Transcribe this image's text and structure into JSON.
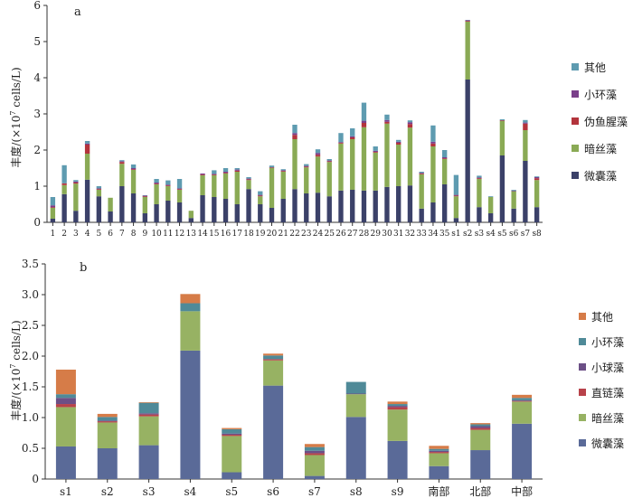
{
  "chart_data": [
    {
      "panel_label": "a",
      "type": "bar",
      "stacked": true,
      "ylabel": "丰度/(×10",
      "ylabel_exp": "7",
      "ylabel_unit": " cells/L)",
      "ylim": [
        0,
        6
      ],
      "yticks": [
        0,
        1,
        2,
        3,
        4,
        5,
        6
      ],
      "grid": false,
      "legend_position": "right",
      "categories": [
        "1",
        "2",
        "3",
        "4",
        "5",
        "6",
        "7",
        "8",
        "9",
        "10",
        "11",
        "12",
        "13",
        "14",
        "15",
        "16",
        "17",
        "18",
        "19",
        "20",
        "21",
        "22",
        "23",
        "24",
        "25",
        "26",
        "27",
        "28",
        "29",
        "30",
        "31",
        "32",
        "33",
        "34",
        "35",
        "s1",
        "s2",
        "s3",
        "s4",
        "s5",
        "s6",
        "s7",
        "s8"
      ],
      "series": [
        {
          "name": "微囊藻",
          "color": "#3b4169",
          "values": [
            0.1,
            0.78,
            0.32,
            1.18,
            0.72,
            0.3,
            1.0,
            0.8,
            0.25,
            0.5,
            0.6,
            0.55,
            0.12,
            0.75,
            0.7,
            0.65,
            0.5,
            0.92,
            0.5,
            0.4,
            0.65,
            0.92,
            0.8,
            0.82,
            0.72,
            0.88,
            0.9,
            0.88,
            0.88,
            0.98,
            1.0,
            1.02,
            0.38,
            0.55,
            1.05,
            0.12,
            3.95,
            0.42,
            0.25,
            1.85,
            0.38,
            1.7,
            0.42
          ]
        },
        {
          "name": "暗丝藻",
          "color": "#8aaa55",
          "values": [
            0.3,
            0.25,
            0.75,
            0.72,
            0.18,
            0.38,
            0.62,
            0.65,
            0.45,
            0.55,
            0.4,
            0.35,
            0.2,
            0.55,
            0.6,
            0.7,
            0.9,
            0.25,
            0.22,
            1.1,
            0.75,
            1.38,
            0.72,
            1.0,
            0.95,
            1.3,
            1.4,
            1.75,
            1.05,
            1.75,
            1.15,
            1.6,
            0.95,
            1.55,
            0.7,
            0.6,
            1.6,
            0.78,
            0.45,
            0.95,
            0.48,
            0.85,
            0.75
          ]
        },
        {
          "name": "伪鱼腥藻",
          "color": "#b3343c",
          "values": [
            0.02,
            0.05,
            0.03,
            0.25,
            0.02,
            0.0,
            0.05,
            0.02,
            0.02,
            0.02,
            0.02,
            0.02,
            0.0,
            0.02,
            0.02,
            0.02,
            0.03,
            0.02,
            0.02,
            0.02,
            0.02,
            0.12,
            0.02,
            0.05,
            0.02,
            0.02,
            0.05,
            0.12,
            0.02,
            0.05,
            0.05,
            0.1,
            0.02,
            0.08,
            0.02,
            0.02,
            0.02,
            0.02,
            0.0,
            0.02,
            0.0,
            0.18,
            0.05
          ]
        },
        {
          "name": "小环藻",
          "color": "#7a3f8a",
          "values": [
            0.05,
            0.0,
            0.03,
            0.03,
            0.02,
            0.0,
            0.02,
            0.03,
            0.02,
            0.03,
            0.02,
            0.02,
            0.0,
            0.03,
            0.02,
            0.03,
            0.03,
            0.02,
            0.02,
            0.0,
            0.02,
            0.05,
            0.02,
            0.05,
            0.02,
            0.02,
            0.03,
            0.06,
            0.03,
            0.05,
            0.03,
            0.05,
            0.02,
            0.05,
            0.03,
            0.02,
            0.02,
            0.02,
            0.0,
            0.0,
            0.02,
            0.03,
            0.03
          ]
        },
        {
          "name": "其他",
          "color": "#5e9bb0",
          "values": [
            0.23,
            0.5,
            0.04,
            0.07,
            0.06,
            0.0,
            0.03,
            0.1,
            0.01,
            0.1,
            0.12,
            0.26,
            0.0,
            0.0,
            0.1,
            0.1,
            0.04,
            0.04,
            0.1,
            0.05,
            0.03,
            0.23,
            0.05,
            0.1,
            0.04,
            0.25,
            0.22,
            0.5,
            0.12,
            0.15,
            0.05,
            0.05,
            0.03,
            0.45,
            0.2,
            0.55,
            0.01,
            0.05,
            0.02,
            0.03,
            0.02,
            0.07,
            0.02
          ]
        }
      ],
      "legend": [
        "其他",
        "小环藻",
        "伪鱼腥藻",
        "暗丝藻",
        "微囊藻"
      ]
    },
    {
      "panel_label": "b",
      "type": "bar",
      "stacked": true,
      "ylabel": "丰度/(×10",
      "ylabel_exp": "7",
      "ylabel_unit": " cells/L)",
      "ylim": [
        0,
        3.5
      ],
      "yticks": [
        "0",
        "0.5",
        "1.0",
        "1.5",
        "2.0",
        "2.5",
        "3.0",
        "3.5"
      ],
      "grid": false,
      "legend_position": "right",
      "categories": [
        "s1",
        "s2",
        "s3",
        "s4",
        "s5",
        "s6",
        "s7",
        "s8",
        "s9",
        "南部",
        "北部",
        "中部"
      ],
      "series": [
        {
          "name": "微囊藻",
          "color": "#5a6a98",
          "values": [
            0.53,
            0.5,
            0.55,
            2.09,
            0.11,
            1.52,
            0.05,
            1.01,
            0.62,
            0.21,
            0.47,
            0.9
          ]
        },
        {
          "name": "暗丝藻",
          "color": "#97b263",
          "values": [
            0.64,
            0.42,
            0.47,
            0.64,
            0.59,
            0.41,
            0.34,
            0.37,
            0.51,
            0.21,
            0.33,
            0.36
          ]
        },
        {
          "name": "直链藻",
          "color": "#b8424a",
          "values": [
            0.05,
            0.02,
            0.03,
            0.0,
            0.02,
            0.02,
            0.03,
            0.0,
            0.04,
            0.02,
            0.03,
            0.01
          ]
        },
        {
          "name": "小球藻",
          "color": "#6c4f86",
          "values": [
            0.1,
            0.01,
            0.02,
            0.0,
            0.02,
            0.0,
            0.04,
            0.01,
            0.02,
            0.02,
            0.03,
            0.01
          ]
        },
        {
          "name": "小环藻",
          "color": "#4f8a98",
          "values": [
            0.06,
            0.06,
            0.17,
            0.13,
            0.07,
            0.06,
            0.06,
            0.19,
            0.03,
            0.03,
            0.03,
            0.04
          ]
        },
        {
          "name": "其他",
          "color": "#d67c48",
          "values": [
            0.4,
            0.05,
            0.01,
            0.15,
            0.02,
            0.03,
            0.05,
            0.0,
            0.04,
            0.05,
            0.02,
            0.05
          ]
        }
      ],
      "legend": [
        "其他",
        "小环藻",
        "小球藻",
        "直链藻",
        "暗丝藻",
        "微囊藻"
      ]
    }
  ]
}
